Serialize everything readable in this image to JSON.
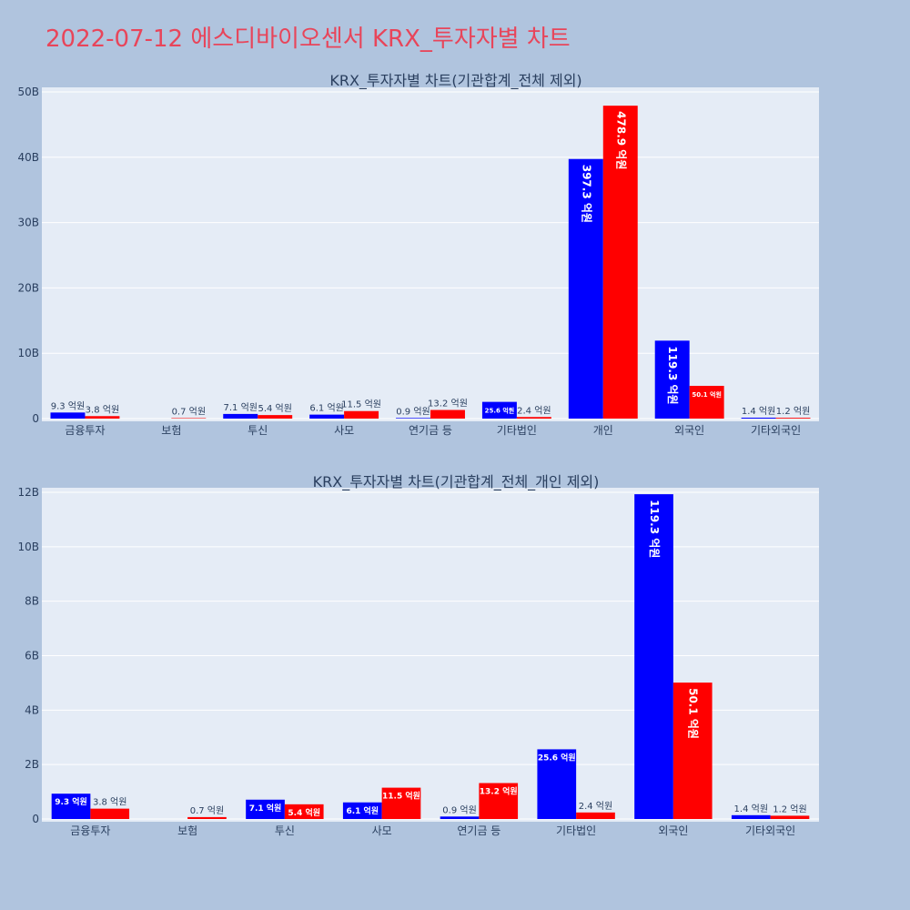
{
  "title": "2022-07-12 에스디바이오센서 KRX_투자자별 차트",
  "colors": {
    "series1": "#0000ff",
    "series2": "#ff0000"
  },
  "chart_data": [
    {
      "type": "bar",
      "title": "KRX_투자자별 차트(기관합계_전체 제외)",
      "categories": [
        "금융투자",
        "보험",
        "투신",
        "사모",
        "연기금 등",
        "기타법인",
        "개인",
        "외국인",
        "기타외국인"
      ],
      "ylim": [
        0,
        50
      ],
      "yticks": [
        0,
        10,
        20,
        30,
        40,
        50
      ],
      "ytick_labels": [
        "0",
        "10B",
        "20B",
        "30B",
        "40B",
        "50B"
      ],
      "series": [
        {
          "values": [
            0.93,
            0,
            0.71,
            0.61,
            0.09,
            2.56,
            39.73,
            11.93,
            0.14
          ],
          "labels": [
            "9.3 억원",
            "",
            "7.1 억원",
            "6.1 억원",
            "0.9 억원",
            "25.6 억원",
            "397.3 억원",
            "119.3 억원",
            "1.4 억원"
          ]
        },
        {
          "values": [
            0.38,
            0.07,
            0.54,
            1.15,
            1.32,
            0.24,
            47.89,
            5.01,
            0.12
          ],
          "labels": [
            "3.8 억원",
            "0.7 억원",
            "5.4 억원",
            "11.5 억원",
            "13.2 억원",
            "2.4 억원",
            "478.9 억원",
            "50.1 억원",
            "1.2 억원"
          ]
        }
      ]
    },
    {
      "type": "bar",
      "title": "KRX_투자자별 차트(기관합계_전체_개인 제외)",
      "categories": [
        "금융투자",
        "보험",
        "투신",
        "사모",
        "연기금 등",
        "기타법인",
        "외국인",
        "기타외국인"
      ],
      "ylim": [
        0,
        12
      ],
      "yticks": [
        0,
        2,
        4,
        6,
        8,
        10,
        12
      ],
      "ytick_labels": [
        "0",
        "2B",
        "4B",
        "6B",
        "8B",
        "10B",
        "12B"
      ],
      "series": [
        {
          "values": [
            0.93,
            0,
            0.71,
            0.61,
            0.09,
            2.56,
            11.93,
            0.14
          ],
          "labels": [
            "9.3 억원",
            "",
            "7.1 억원",
            "6.1 억원",
            "0.9 억원",
            "25.6 억원",
            "119.3 억원",
            "1.4 억원"
          ]
        },
        {
          "values": [
            0.38,
            0.07,
            0.54,
            1.15,
            1.32,
            0.24,
            5.01,
            0.12
          ],
          "labels": [
            "3.8 억원",
            "0.7 억원",
            "5.4 억원",
            "11.5 억원",
            "13.2 억원",
            "2.4 억원",
            "50.1 억원",
            "1.2 억원"
          ]
        }
      ]
    }
  ]
}
